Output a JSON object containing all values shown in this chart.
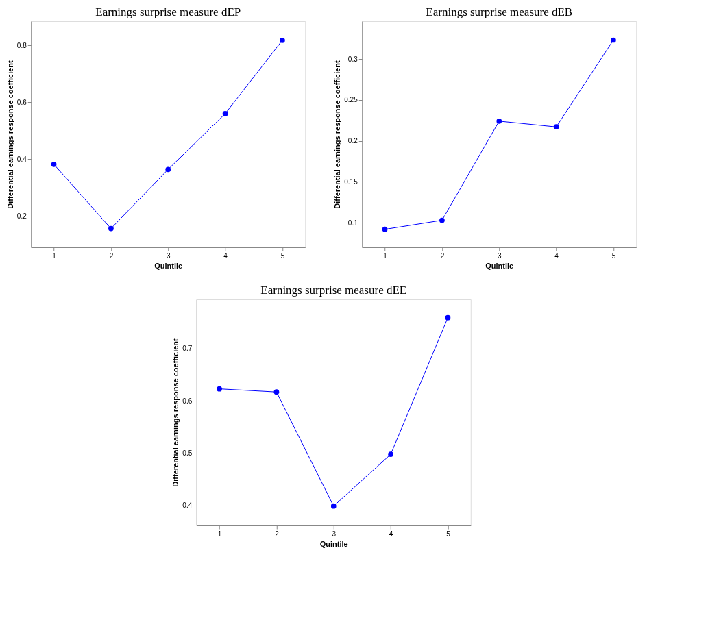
{
  "chart_data": [
    {
      "type": "line",
      "title": "Earnings surprise measure dEP",
      "xlabel": "Quintile",
      "ylabel": "Differential earnings response coefficient",
      "x": [
        1,
        2,
        3,
        4,
        5
      ],
      "xlim": [
        0.6,
        5.4
      ],
      "xticks": [
        1,
        2,
        3,
        4,
        5
      ],
      "ylim": [
        0.09,
        0.885
      ],
      "yticks": [
        0.2,
        0.4,
        0.6,
        0.8
      ],
      "marker": "circle",
      "line_style": "solid",
      "grid": false,
      "series": [
        {
          "color": "#0000ff",
          "values": [
            0.382,
            0.156,
            0.364,
            0.56,
            0.818
          ]
        }
      ]
    },
    {
      "type": "line",
      "title": "Earnings surprise measure dEB",
      "xlabel": "Quintile",
      "ylabel": "Differential earnings response coefficient",
      "x": [
        1,
        2,
        3,
        4,
        5
      ],
      "xlim": [
        0.6,
        5.4
      ],
      "xticks": [
        1,
        2,
        3,
        4,
        5
      ],
      "ylim": [
        0.07,
        0.346
      ],
      "yticks": [
        0.1,
        0.15,
        0.2,
        0.25,
        0.3
      ],
      "marker": "circle",
      "line_style": "solid",
      "grid": false,
      "series": [
        {
          "color": "#0000ff",
          "values": [
            0.092,
            0.103,
            0.224,
            0.217,
            0.323
          ]
        }
      ]
    },
    {
      "type": "line",
      "title": "Earnings surprise measure dEE",
      "xlabel": "Quintile",
      "ylabel": "Differential earnings response coefficient",
      "x": [
        1,
        2,
        3,
        4,
        5
      ],
      "xlim": [
        0.6,
        5.4
      ],
      "xticks": [
        1,
        2,
        3,
        4,
        5
      ],
      "ylim": [
        0.362,
        0.794
      ],
      "yticks": [
        0.4,
        0.5,
        0.6,
        0.7
      ],
      "marker": "circle",
      "line_style": "solid",
      "grid": false,
      "series": [
        {
          "color": "#0000ff",
          "values": [
            0.623,
            0.617,
            0.399,
            0.498,
            0.759
          ]
        }
      ]
    }
  ]
}
